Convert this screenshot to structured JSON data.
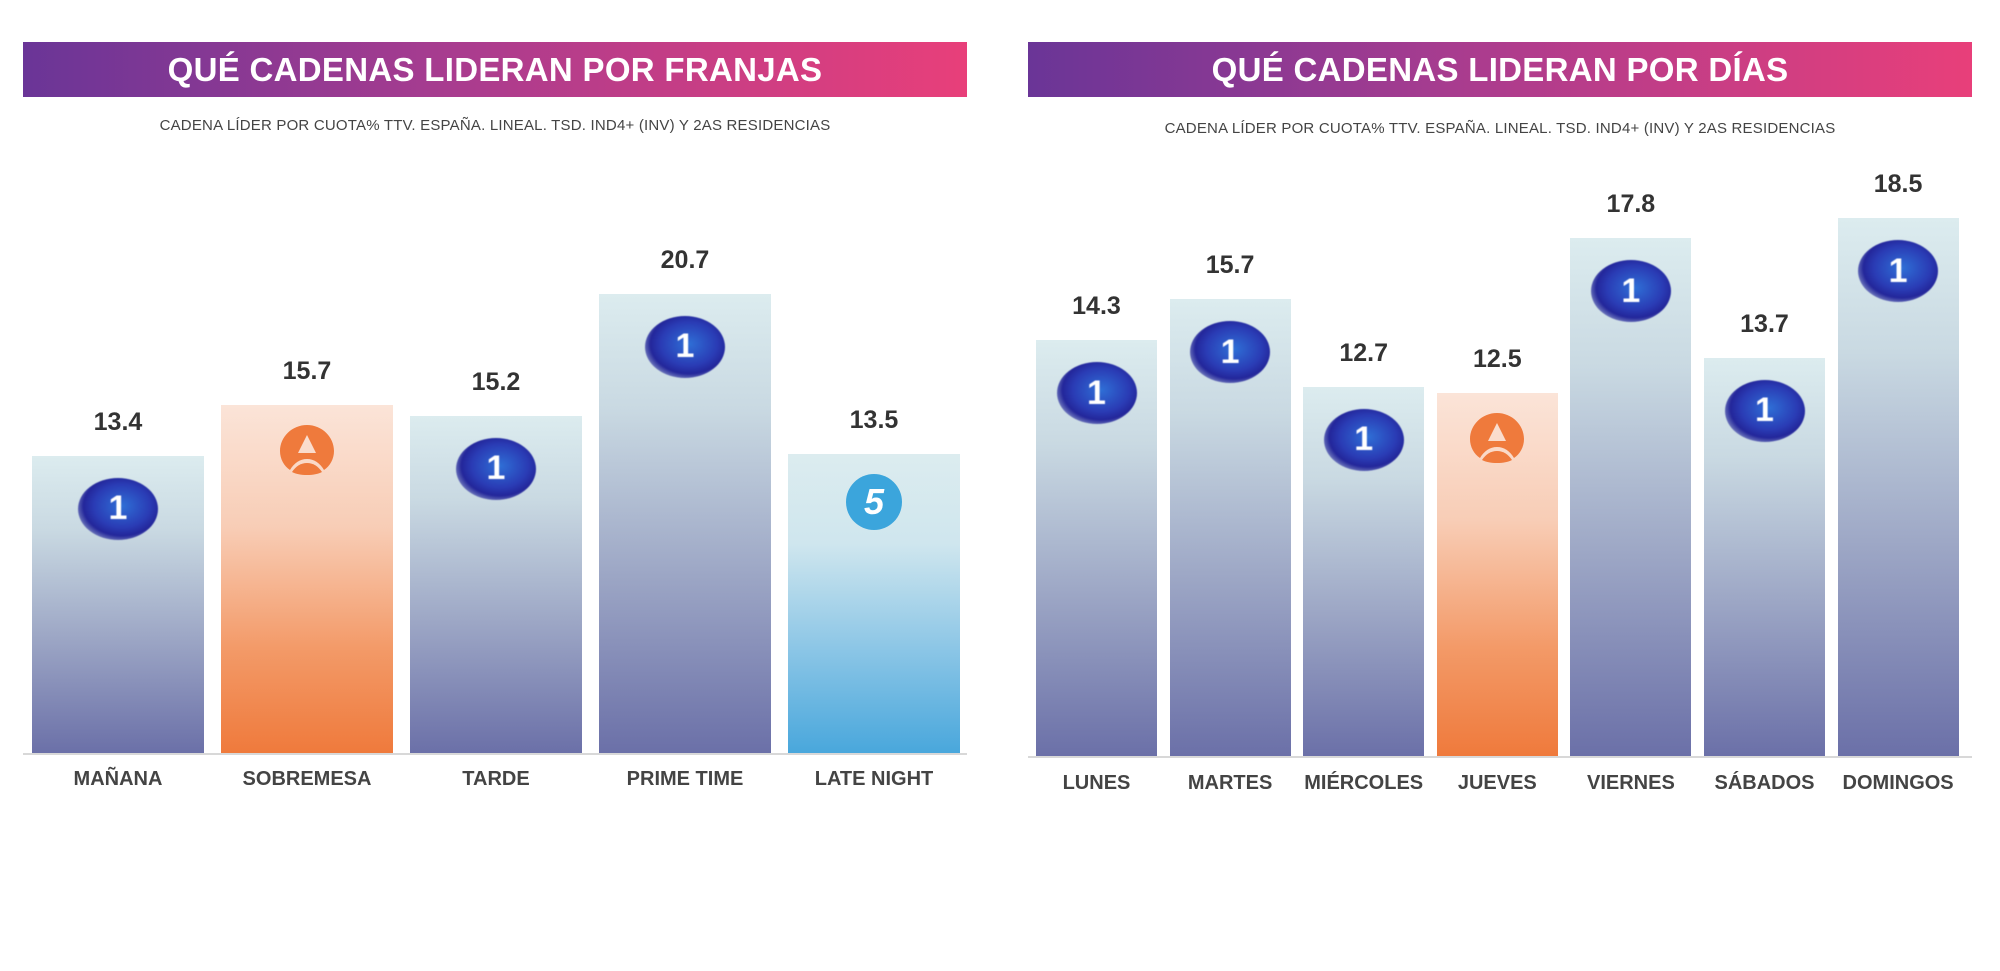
{
  "chart_data": [
    {
      "type": "bar",
      "title": "QUÉ CADENAS LIDERAN POR FRANJAS",
      "subtitle": "CADENA LÍDER POR CUOTA% TTV. ESPAÑA. LINEAL. TSD. IND4+ (INV) Y 2AS RESIDENCIAS",
      "categories": [
        "MAÑANA",
        "SOBREMESA",
        "TARDE",
        "PRIME TIME",
        "LATE NIGHT"
      ],
      "values": [
        13.4,
        15.7,
        15.2,
        20.7,
        13.5
      ],
      "value_labels": [
        "13.4",
        "15.7",
        "15.2",
        "20.7",
        "13.5"
      ],
      "leaders": [
        "la1",
        "antena3",
        "la1",
        "la1",
        "telecinco"
      ],
      "xlabel": "",
      "ylabel": "",
      "ylim": [
        0,
        22
      ]
    },
    {
      "type": "bar",
      "title": "QUÉ CADENAS LIDERAN POR DÍAS",
      "subtitle": "CADENA LÍDER POR CUOTA% TTV. ESPAÑA. LINEAL. TSD. IND4+ (INV) Y 2AS RESIDENCIAS",
      "categories": [
        "LUNES",
        "MARTES",
        "MIÉRCOLES",
        "JUEVES",
        "VIERNES",
        "SÁBADOS",
        "DOMINGOS"
      ],
      "values": [
        14.3,
        15.7,
        12.7,
        12.5,
        17.8,
        13.7,
        18.5
      ],
      "value_labels": [
        "14.3",
        "15.7",
        "12.7",
        "12.5",
        "17.8",
        "13.7",
        "18.5"
      ],
      "leaders": [
        "la1",
        "la1",
        "la1",
        "antena3",
        "la1",
        "la1",
        "la1"
      ],
      "xlabel": "",
      "ylabel": "",
      "ylim": [
        0,
        20
      ]
    }
  ],
  "logos": {
    "la1": "1",
    "telecinco": "5",
    "antena3": ""
  },
  "colors": {
    "la1": "#6b70a8",
    "antena3": "#ef7a3c",
    "telecinco": "#49a7dc",
    "title_start": "#6a3597",
    "title_end": "#e83f7a"
  }
}
